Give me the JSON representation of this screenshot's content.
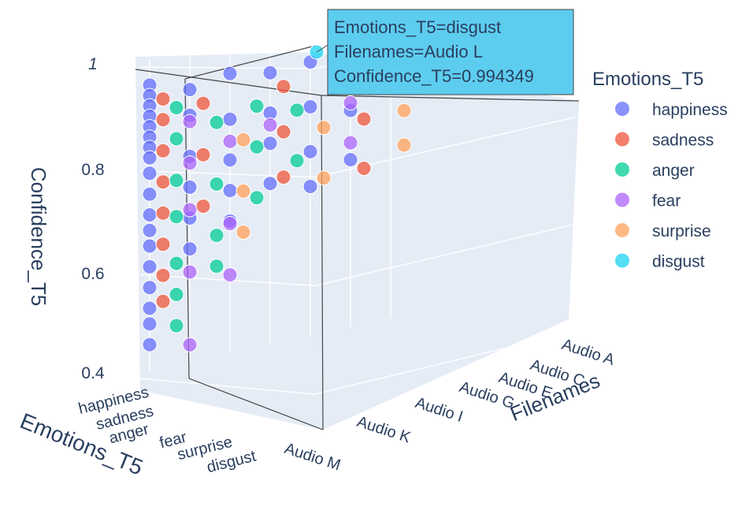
{
  "chart_data": {
    "type": "scatter3d",
    "axes": {
      "x": {
        "label": "Emotions_T5",
        "ticks": [
          "happiness",
          "sadness",
          "anger",
          "fear",
          "surprise",
          "disgust"
        ]
      },
      "y": {
        "label": "Filenames",
        "ticks": [
          "Audio A",
          "Audio C",
          "Audio E",
          "Audio G",
          "Audio I",
          "Audio K",
          "Audio M"
        ]
      },
      "z": {
        "label": "Confidence_T5",
        "ticks": [
          "0.4",
          "0.6",
          "0.8",
          "1"
        ],
        "range": [
          0.4,
          1.0
        ]
      }
    },
    "legend": {
      "title": "Emotions_T5",
      "position": "right",
      "items": [
        {
          "name": "happiness",
          "color": "#636EFA"
        },
        {
          "name": "sadness",
          "color": "#EF553B"
        },
        {
          "name": "anger",
          "color": "#00CC96"
        },
        {
          "name": "fear",
          "color": "#AB63FA"
        },
        {
          "name": "surprise",
          "color": "#FFA15A"
        },
        {
          "name": "disgust",
          "color": "#19D3F3"
        }
      ]
    },
    "tooltip": {
      "lines": [
        "Emotions_T5=disgust",
        "Filenames=Audio L",
        "Confidence_T5=0.994349"
      ],
      "background": "#5DCDEF"
    },
    "series": [
      {
        "name": "happiness",
        "points": [
          [
            "happiness",
            "Audio M",
            0.95
          ],
          [
            "happiness",
            "Audio M",
            0.93
          ],
          [
            "happiness",
            "Audio M",
            0.91
          ],
          [
            "happiness",
            "Audio M",
            0.89
          ],
          [
            "happiness",
            "Audio M",
            0.87
          ],
          [
            "happiness",
            "Audio M",
            0.85
          ],
          [
            "happiness",
            "Audio M",
            0.83
          ],
          [
            "happiness",
            "Audio M",
            0.81
          ],
          [
            "happiness",
            "Audio M",
            0.78
          ],
          [
            "happiness",
            "Audio M",
            0.74
          ],
          [
            "happiness",
            "Audio M",
            0.7
          ],
          [
            "happiness",
            "Audio M",
            0.67
          ],
          [
            "happiness",
            "Audio M",
            0.64
          ],
          [
            "happiness",
            "Audio M",
            0.6
          ],
          [
            "happiness",
            "Audio M",
            0.56
          ],
          [
            "happiness",
            "Audio M",
            0.52
          ],
          [
            "happiness",
            "Audio M",
            0.49
          ],
          [
            "happiness",
            "Audio M",
            0.45
          ],
          [
            "happiness",
            "Audio K",
            0.93
          ],
          [
            "happiness",
            "Audio K",
            0.88
          ],
          [
            "happiness",
            "Audio K",
            0.8
          ],
          [
            "happiness",
            "Audio K",
            0.74
          ],
          [
            "happiness",
            "Audio K",
            0.68
          ],
          [
            "happiness",
            "Audio K",
            0.62
          ],
          [
            "happiness",
            "Audio I",
            0.95
          ],
          [
            "happiness",
            "Audio I",
            0.86
          ],
          [
            "happiness",
            "Audio I",
            0.78
          ],
          [
            "happiness",
            "Audio I",
            0.72
          ],
          [
            "happiness",
            "Audio I",
            0.66
          ],
          [
            "happiness",
            "Audio G",
            0.94
          ],
          [
            "happiness",
            "Audio G",
            0.86
          ],
          [
            "happiness",
            "Audio G",
            0.8
          ],
          [
            "happiness",
            "Audio G",
            0.72
          ],
          [
            "happiness",
            "Audio E",
            0.95
          ],
          [
            "happiness",
            "Audio E",
            0.86
          ],
          [
            "happiness",
            "Audio E",
            0.77
          ],
          [
            "happiness",
            "Audio E",
            0.7
          ],
          [
            "happiness",
            "Audio C",
            0.96
          ],
          [
            "happiness",
            "Audio C",
            0.9
          ],
          [
            "happiness",
            "Audio C",
            0.84
          ],
          [
            "happiness",
            "Audio C",
            0.74
          ],
          [
            "happiness",
            "Audio A",
            0.97
          ],
          [
            "happiness",
            "Audio A",
            0.91
          ],
          [
            "sadness",
            "Audio M",
            0.94
          ],
          [
            "sadness",
            "Audio M",
            0.9
          ],
          [
            "sadness",
            "Audio M",
            0.84
          ],
          [
            "sadness",
            "Audio M",
            0.78
          ],
          [
            "sadness",
            "Audio M",
            0.72
          ],
          [
            "sadness",
            "Audio M",
            0.66
          ],
          [
            "sadness",
            "Audio M",
            0.6
          ],
          [
            "sadness",
            "Audio M",
            0.55
          ],
          [
            "sadness",
            "Audio K",
            0.92
          ],
          [
            "sadness",
            "Audio K",
            0.82
          ],
          [
            "sadness",
            "Audio K",
            0.72
          ],
          [
            "sadness",
            "Audio G",
            0.93
          ],
          [
            "sadness",
            "Audio G",
            0.84
          ],
          [
            "sadness",
            "Audio G",
            0.75
          ],
          [
            "sadness",
            "Audio C",
            0.93
          ],
          [
            "sadness",
            "Audio C",
            0.84
          ],
          [
            "sadness",
            "Audio C",
            0.74
          ],
          [
            "anger",
            "Audio M",
            0.94
          ],
          [
            "anger",
            "Audio M",
            0.88
          ],
          [
            "anger",
            "Audio M",
            0.8
          ],
          [
            "anger",
            "Audio M",
            0.73
          ],
          [
            "anger",
            "Audio M",
            0.64
          ],
          [
            "anger",
            "Audio M",
            0.58
          ],
          [
            "anger",
            "Audio M",
            0.52
          ],
          [
            "anger",
            "Audio K",
            0.9
          ],
          [
            "anger",
            "Audio K",
            0.78
          ],
          [
            "anger",
            "Audio K",
            0.68
          ],
          [
            "anger",
            "Audio K",
            0.62
          ],
          [
            "anger",
            "Audio I",
            0.92
          ],
          [
            "anger",
            "Audio I",
            0.84
          ],
          [
            "anger",
            "Audio I",
            0.74
          ],
          [
            "anger",
            "Audio G",
            0.9
          ],
          [
            "anger",
            "Audio G",
            0.8
          ],
          [
            "fear",
            "Audio M",
            0.93
          ],
          [
            "fear",
            "Audio M",
            0.85
          ],
          [
            "fear",
            "Audio M",
            0.76
          ],
          [
            "fear",
            "Audio M",
            0.64
          ],
          [
            "fear",
            "Audio M",
            0.5
          ],
          [
            "fear",
            "Audio K",
            0.88
          ],
          [
            "fear",
            "Audio K",
            0.72
          ],
          [
            "fear",
            "Audio K",
            0.62
          ],
          [
            "fear",
            "Audio I",
            0.9
          ],
          [
            "fear",
            "Audio E",
            0.92
          ],
          [
            "fear",
            "Audio E",
            0.84
          ],
          [
            "surprise",
            "Audio K",
            0.9
          ],
          [
            "surprise",
            "Audio K",
            0.8
          ],
          [
            "surprise",
            "Audio K",
            0.72
          ],
          [
            "surprise",
            "Audio G",
            0.9
          ],
          [
            "surprise",
            "Audio G",
            0.8
          ],
          [
            "surprise",
            "Audio C",
            0.91
          ],
          [
            "surprise",
            "Audio C",
            0.84
          ]
        ]
      }
    ]
  }
}
